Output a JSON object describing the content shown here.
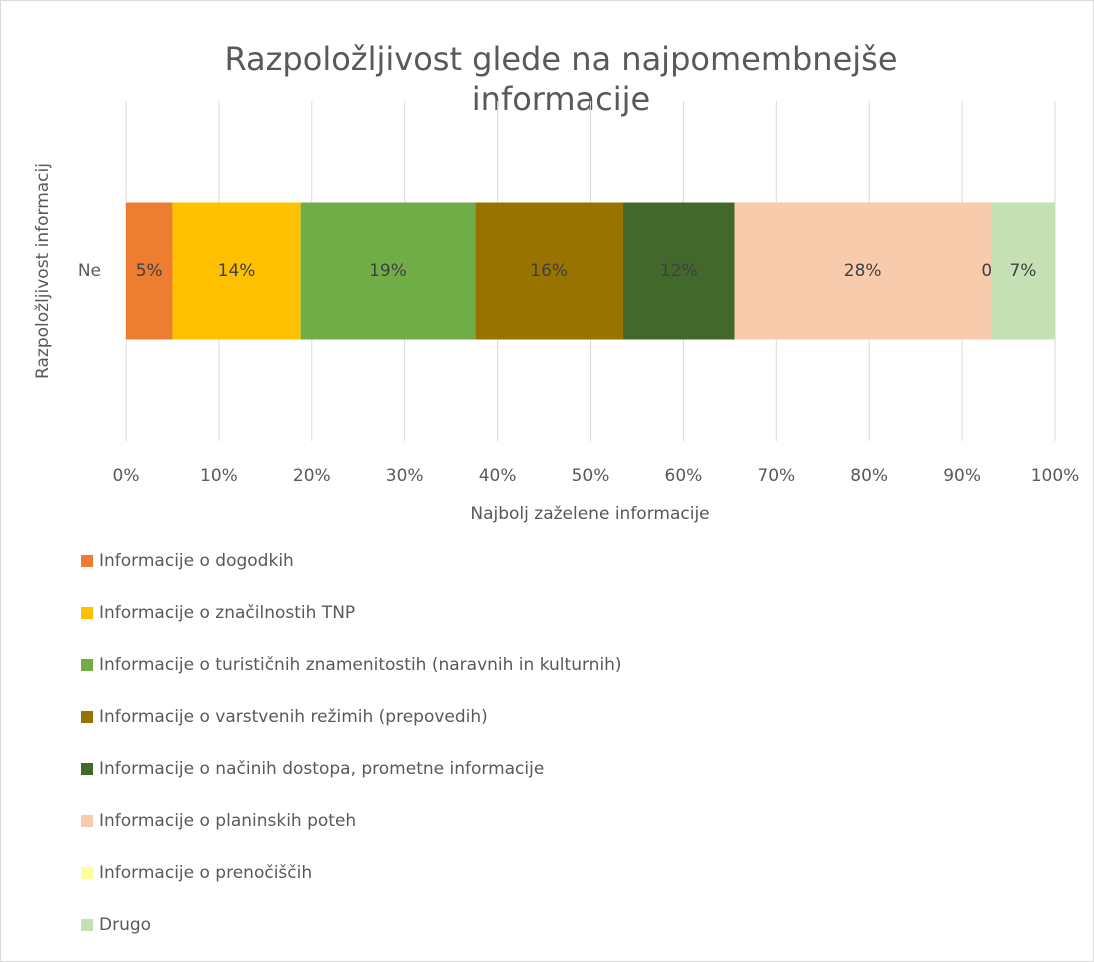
{
  "chart_data": {
    "type": "bar",
    "orientation": "horizontal",
    "stacked": true,
    "title": "Razpoložljivost glede na najpomembnejše informacije",
    "xlabel": "Najbolj zaželene informacije",
    "ylabel": "Razpoložljivost informacij",
    "categories": [
      "Ne"
    ],
    "series": [
      {
        "name": "Informacije o dogodkih",
        "color": "#ED7D31",
        "values": [
          5.0
        ],
        "value_labels": [
          "5%"
        ]
      },
      {
        "name": "Informacije o značilnostih TNP",
        "color": "#FFC000",
        "values": [
          13.8
        ],
        "value_labels": [
          "14%"
        ]
      },
      {
        "name": "Informacije o turističnih znamenitostih (naravnih in kulturnih)",
        "color": "#70AD47",
        "values": [
          18.8
        ],
        "value_labels": [
          "19%"
        ]
      },
      {
        "name": "Informacije o varstvenih režimih (prepovedih)",
        "color": "#997300",
        "values": [
          15.9
        ],
        "value_labels": [
          "16%"
        ]
      },
      {
        "name": "Informacije o načinih dostopa, prometne informacije",
        "color": "#43682B",
        "values": [
          12.0
        ],
        "value_labels": [
          "12%"
        ]
      },
      {
        "name": "Informacije o planinskih poteh",
        "color": "#F8CBAD",
        "values": [
          27.6
        ],
        "value_labels": [
          "28%"
        ]
      },
      {
        "name": "Informacije o prenočiščih",
        "color": "#FFFF99",
        "values": [
          0
        ],
        "value_labels": [
          "0%"
        ]
      },
      {
        "name": "Drugo",
        "color": "#C5E0B4",
        "values": [
          6.9
        ],
        "value_labels": [
          "7%"
        ]
      }
    ],
    "xlim": [
      0,
      100
    ],
    "xticks": [
      {
        "value": 0,
        "label": "0%"
      },
      {
        "value": 10,
        "label": "10%"
      },
      {
        "value": 20,
        "label": "20%"
      },
      {
        "value": 30,
        "label": "30%"
      },
      {
        "value": 40,
        "label": "40%"
      },
      {
        "value": 50,
        "label": "50%"
      },
      {
        "value": 60,
        "label": "60%"
      },
      {
        "value": 70,
        "label": "70%"
      },
      {
        "value": 80,
        "label": "80%"
      },
      {
        "value": 90,
        "label": "90%"
      },
      {
        "value": 100,
        "label": "100%"
      }
    ],
    "grid": true,
    "legend": "bottom"
  }
}
